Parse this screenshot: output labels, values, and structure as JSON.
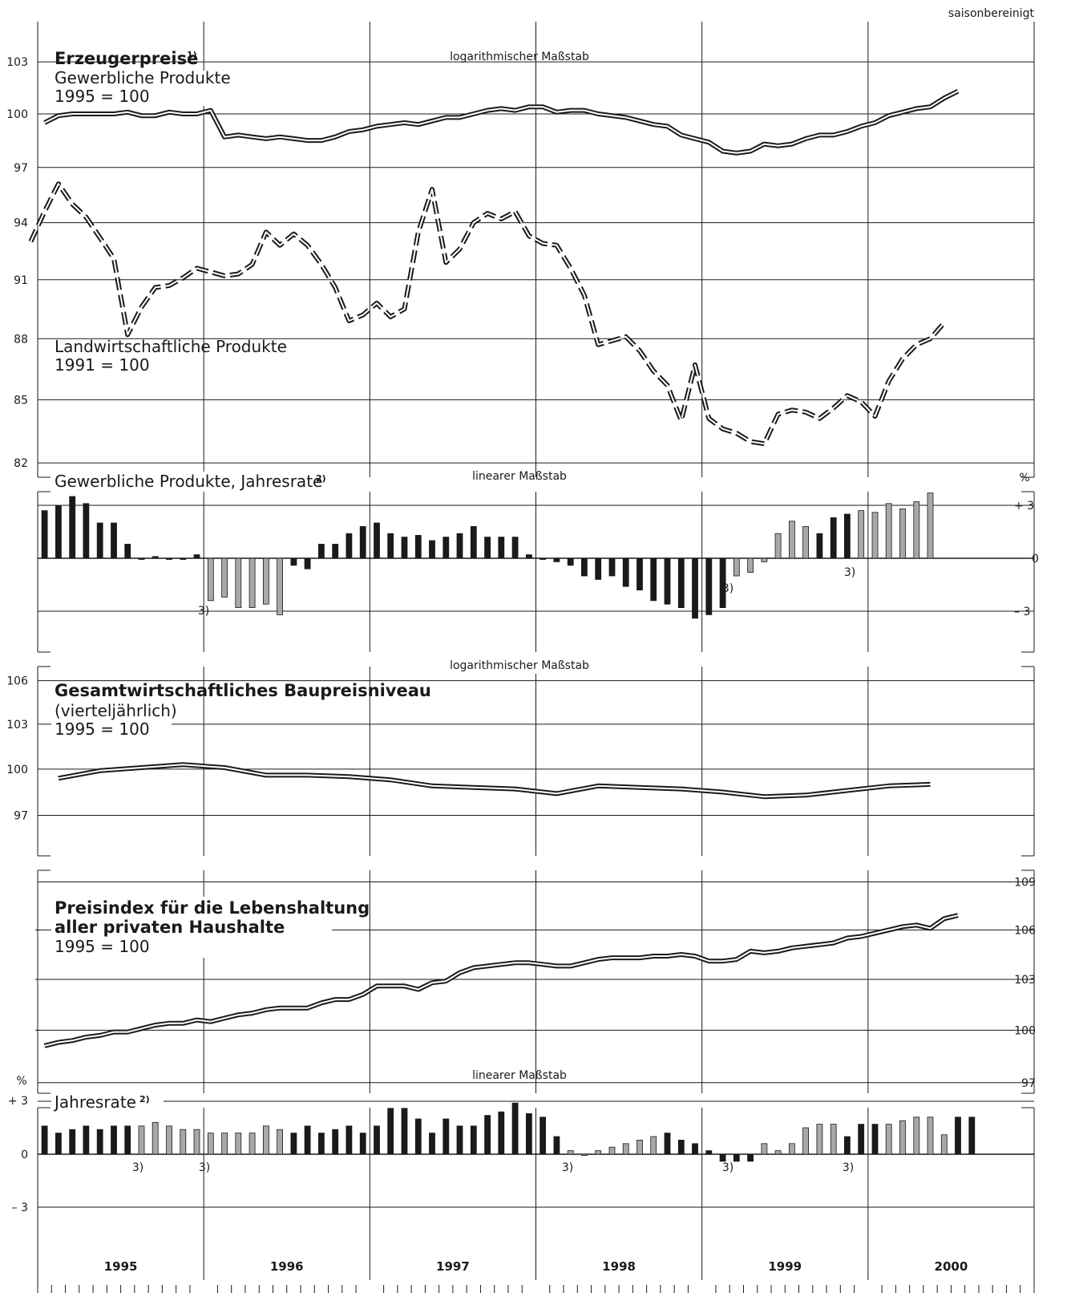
{
  "header": {
    "note": "saisonbereinigt"
  },
  "chart_data": [
    {
      "id": "panel1",
      "type": "line",
      "scale": "log",
      "scale_label": "logarithmischer Maßstab",
      "title": "Erzeugerpreise",
      "title_sup": "1)",
      "yticks": [
        103,
        100,
        97,
        94,
        91,
        88,
        85,
        82
      ],
      "series": [
        {
          "name": "Gewerbliche Produkte",
          "label_line2": "1995 = 100",
          "style": "double-solid",
          "x_start": "1995-01",
          "freq": "monthly",
          "values": [
            99.5,
            99.9,
            100,
            100,
            100,
            100,
            100.1,
            99.9,
            99.9,
            100.1,
            100,
            100,
            100.2,
            98.7,
            98.8,
            98.7,
            98.6,
            98.7,
            98.6,
            98.5,
            98.5,
            98.7,
            99,
            99.1,
            99.3,
            99.4,
            99.5,
            99.4,
            99.6,
            99.8,
            99.8,
            100,
            100.2,
            100.3,
            100.2,
            100.4,
            100.4,
            100.1,
            100.2,
            100.2,
            100,
            99.9,
            99.8,
            99.6,
            99.4,
            99.3,
            98.8,
            98.6,
            98.4,
            97.9,
            97.8,
            97.9,
            98.3,
            98.2,
            98.3,
            98.6,
            98.8,
            98.8,
            99,
            99.3,
            99.5,
            99.9,
            100.1,
            100.3,
            100.4,
            100.9,
            101.3
          ]
        },
        {
          "name": "Landwirtschaftliche Produkte",
          "label_line2": "1991 = 100",
          "style": "double-dashed",
          "x_start": "1994-12",
          "freq": "monthly",
          "values": [
            93,
            94.6,
            96.1,
            95,
            94.3,
            93.2,
            92.1,
            88.2,
            89.6,
            90.6,
            90.7,
            91.1,
            91.6,
            91.4,
            91.2,
            91.3,
            91.8,
            93.5,
            92.8,
            93.4,
            92.8,
            91.8,
            90.6,
            88.9,
            89.2,
            89.8,
            89.1,
            89.5,
            93.5,
            95.8,
            91.9,
            92.6,
            94,
            94.5,
            94.2,
            94.6,
            93.3,
            92.9,
            92.8,
            91.6,
            90.2,
            87.7,
            87.9,
            88.1,
            87.4,
            86.4,
            85.7,
            84,
            86.7,
            84.1,
            83.6,
            83.4,
            83,
            82.9,
            84.3,
            84.5,
            84.4,
            84.1,
            84.6,
            85.2,
            84.9,
            84.2,
            85.9,
            87,
            87.7,
            88,
            88.8
          ]
        }
      ],
      "ylim": [
        81,
        105
      ],
      "xlim": [
        "1995-01",
        "2000-12"
      ]
    },
    {
      "id": "panel2",
      "type": "bar",
      "scale_label": "linearer Maßstab",
      "title": "Gewerbliche Produkte, Jahresrate",
      "title_sup": "2)",
      "unit": "%",
      "yticks": [
        "+ 3",
        "0",
        "– 3"
      ],
      "ylim": [
        -4.3,
        4.3
      ],
      "x_start": "1995-01",
      "freq": "monthly",
      "values": [
        2.7,
        3,
        3.5,
        3.1,
        2,
        2,
        0.8,
        0,
        0.1,
        0,
        0,
        0.2,
        -2.4,
        -2.2,
        -2.8,
        -2.8,
        -2.6,
        -3.2,
        -0.4,
        -0.6,
        0.8,
        0.8,
        1.4,
        1.8,
        2,
        1.4,
        1.2,
        1.3,
        1,
        1.2,
        1.4,
        1.8,
        1.2,
        1.2,
        1.2,
        0.2,
        0,
        -0.2,
        -0.4,
        -1,
        -1.2,
        -1,
        -1.6,
        -1.8,
        -2.4,
        -2.6,
        -2.8,
        -3.4,
        -3.2,
        -2.8,
        -1,
        -0.8,
        -0.2,
        1.4,
        2.1,
        1.8,
        1.4,
        2.3,
        2.5,
        2.7,
        2.6,
        3.1,
        2.8,
        3.2,
        3.7
      ],
      "bar_color": [
        "k",
        "k",
        "k",
        "k",
        "k",
        "k",
        "k",
        "k",
        "k",
        "k",
        "k",
        "k",
        "g",
        "g",
        "g",
        "g",
        "g",
        "g",
        "k",
        "k",
        "k",
        "k",
        "k",
        "k",
        "k",
        "k",
        "k",
        "k",
        "k",
        "k",
        "k",
        "k",
        "k",
        "k",
        "k",
        "k",
        "k",
        "k",
        "k",
        "k",
        "k",
        "k",
        "k",
        "k",
        "k",
        "k",
        "k",
        "k",
        "k",
        "k",
        "g",
        "g",
        "g",
        "g",
        "g",
        "g",
        "k",
        "k",
        "k",
        "g",
        "g",
        "g",
        "g",
        "g",
        "g"
      ],
      "footnote": "3)"
    },
    {
      "id": "panel3",
      "type": "line",
      "scale": "log",
      "scale_label": "logarithmischer Maßstab",
      "title": "Gesamtwirtschaftliches Baupreisniveau",
      "subtitle": "(vierteljährlich)",
      "base": "1995 = 100",
      "yticks": [
        106,
        103,
        100,
        97
      ],
      "ylim": [
        95.5,
        107.5
      ],
      "series": [
        {
          "name": "Gesamtwirtschaftliches Baupreisniveau",
          "x_start": "1995-Q1",
          "freq": "quarterly",
          "values": [
            99.4,
            99.9,
            100.1,
            100.3,
            100.1,
            99.6,
            99.6,
            99.5,
            99.3,
            98.9,
            98.8,
            98.7,
            98.4,
            98.9,
            98.8,
            98.7,
            98.5,
            98.2,
            98.3,
            98.6,
            98.9,
            99
          ]
        }
      ]
    },
    {
      "id": "panel4",
      "type": "line",
      "scale": "log",
      "title": "Preisindex für die Lebenshaltung",
      "title_line2": "aller privaten Haushalte",
      "base": "1995 = 100",
      "yticks": [
        109,
        106,
        103,
        100,
        97
      ],
      "ylim": [
        96,
        110.2
      ],
      "series": [
        {
          "name": "Preisindex für die Lebenshaltung aller privaten Haushalte",
          "x_start": "1995-01",
          "freq": "monthly",
          "values": [
            99.1,
            99.3,
            99.4,
            99.6,
            99.7,
            99.9,
            99.9,
            100.1,
            100.3,
            100.4,
            100.4,
            100.6,
            100.5,
            100.7,
            100.9,
            101,
            101.2,
            101.3,
            101.3,
            101.3,
            101.6,
            101.8,
            101.8,
            102.1,
            102.6,
            102.6,
            102.6,
            102.4,
            102.8,
            102.9,
            103.4,
            103.7,
            103.8,
            103.9,
            104,
            104,
            103.9,
            103.8,
            103.8,
            104,
            104.2,
            104.3,
            104.3,
            104.3,
            104.4,
            104.4,
            104.5,
            104.4,
            104.1,
            104.1,
            104.2,
            104.7,
            104.6,
            104.7,
            104.9,
            105,
            105.1,
            105.2,
            105.5,
            105.6,
            105.8,
            106,
            106.2,
            106.3,
            106.1,
            106.7,
            106.9
          ]
        }
      ]
    },
    {
      "id": "panel5",
      "type": "bar",
      "scale_label": "linearer Maßstab",
      "title": "Jahresrate",
      "title_sup": "2)",
      "unit": "%",
      "yticks": [
        "+ 3",
        "0",
        "– 3"
      ],
      "ylim": [
        -5,
        4
      ],
      "x_start": "1995-01",
      "freq": "monthly",
      "values": [
        1.6,
        1.2,
        1.4,
        1.6,
        1.4,
        1.6,
        1.6,
        1.6,
        1.8,
        1.6,
        1.4,
        1.4,
        1.2,
        1.2,
        1.2,
        1.2,
        1.6,
        1.4,
        1.2,
        1.6,
        1.2,
        1.4,
        1.6,
        1.2,
        1.6,
        2.6,
        2.6,
        2,
        1.2,
        2,
        1.6,
        1.6,
        2.2,
        2.4,
        2.9,
        2.3,
        2.1,
        1,
        0.2,
        0,
        0.2,
        0.4,
        0.6,
        0.8,
        1,
        1.2,
        0.8,
        0.6,
        0.2,
        -0.4,
        -0.4,
        -0.4,
        0.6,
        0.2,
        0.6,
        1.5,
        1.7,
        1.7,
        1,
        1.7,
        1.7,
        1.7,
        1.9,
        2.1,
        2.1,
        1.1,
        2.1,
        2.1
      ],
      "bar_color": [
        "k",
        "k",
        "k",
        "k",
        "k",
        "k",
        "k",
        "g",
        "g",
        "g",
        "g",
        "g",
        "g",
        "g",
        "g",
        "g",
        "g",
        "g",
        "k",
        "k",
        "k",
        "k",
        "k",
        "k",
        "k",
        "k",
        "k",
        "k",
        "k",
        "k",
        "k",
        "k",
        "k",
        "k",
        "k",
        "k",
        "k",
        "k",
        "g",
        "g",
        "g",
        "g",
        "g",
        "g",
        "g",
        "k",
        "k",
        "k",
        "k",
        "k",
        "k",
        "k",
        "g",
        "g",
        "g",
        "g",
        "g",
        "g",
        "k",
        "k",
        "k",
        "g",
        "g",
        "g",
        "g",
        "g",
        "k",
        "k"
      ],
      "footnote": "3)"
    }
  ],
  "x_axis": {
    "years": [
      "1995",
      "1996",
      "1997",
      "1998",
      "1999",
      "2000"
    ]
  }
}
